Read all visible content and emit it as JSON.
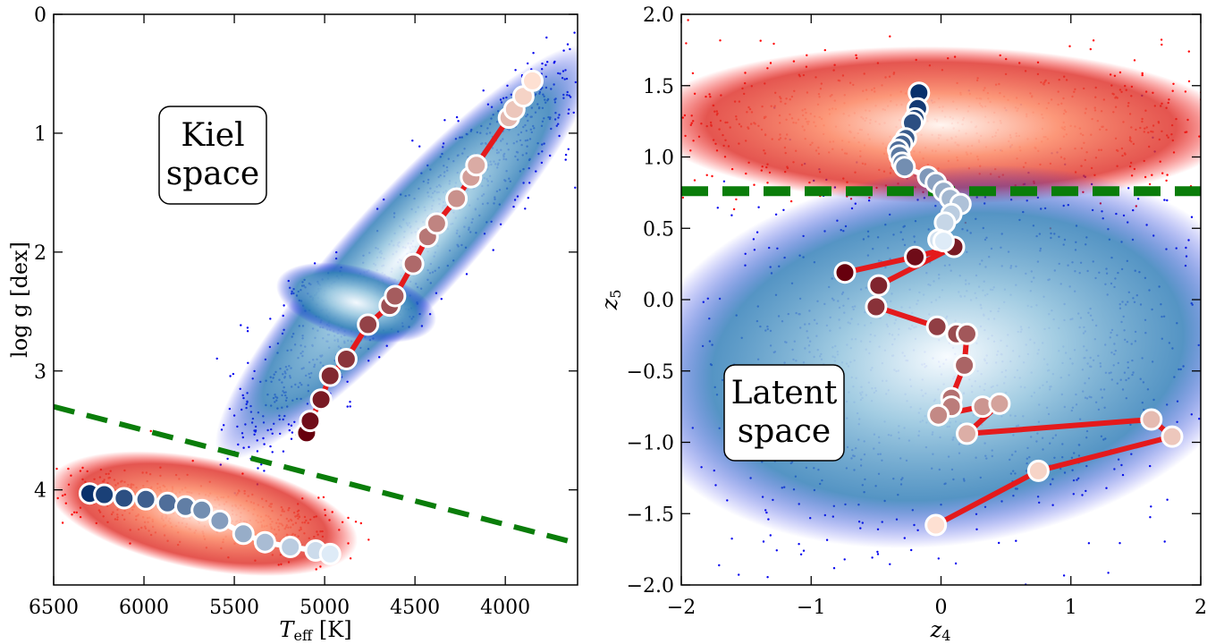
{
  "chart_data": [
    {
      "type": "scatter",
      "xlabel": "T",
      "xlabel_sub": "eff",
      "xlabel_unit": " [K]",
      "ylabel": "log g [dex]",
      "xlim": [
        6500,
        3600
      ],
      "ylim": [
        4.8,
        0
      ],
      "x_ticks": [
        6500,
        6000,
        5500,
        5000,
        4500,
        4000
      ],
      "y_ticks": [
        0,
        1,
        2,
        3,
        4
      ],
      "annotation": [
        "Kiel",
        "space"
      ],
      "divider": {
        "color": "#0a7d0a",
        "style": "dashed",
        "points": [
          [
            6500,
            3.3
          ],
          [
            3600,
            4.45
          ]
        ]
      },
      "populations": [
        {
          "color": "#0000ee",
          "density_colormap": "Blues",
          "region": "giant branch"
        },
        {
          "color": "#ff0000",
          "density_colormap": "Reds",
          "region": "dwarfs"
        }
      ],
      "sequences": [
        {
          "line_color": "#e41a1c",
          "colormap": "Reds",
          "points": [
            [
              5100,
              3.52
            ],
            [
              5080,
              3.42
            ],
            [
              5020,
              3.24
            ],
            [
              4970,
              3.04
            ],
            [
              4880,
              2.9
            ],
            [
              4760,
              2.61
            ],
            [
              4640,
              2.45
            ],
            [
              4610,
              2.37
            ],
            [
              4510,
              2.1
            ],
            [
              4430,
              1.87
            ],
            [
              4380,
              1.76
            ],
            [
              4270,
              1.55
            ],
            [
              4190,
              1.37
            ],
            [
              4160,
              1.27
            ],
            [
              3980,
              0.87
            ],
            [
              3950,
              0.8
            ],
            [
              3900,
              0.69
            ],
            [
              3850,
              0.56
            ]
          ]
        },
        {
          "line_color": "#ffffff",
          "colormap": "Blues",
          "points": [
            [
              6300,
              4.03
            ],
            [
              6220,
              4.04
            ],
            [
              6110,
              4.07
            ],
            [
              5990,
              4.08
            ],
            [
              5870,
              4.11
            ],
            [
              5770,
              4.14
            ],
            [
              5680,
              4.17
            ],
            [
              5580,
              4.26
            ],
            [
              5450,
              4.37
            ],
            [
              5330,
              4.44
            ],
            [
              5190,
              4.48
            ],
            [
              5050,
              4.51
            ],
            [
              4970,
              4.54
            ]
          ]
        }
      ]
    },
    {
      "type": "scatter",
      "xlabel": "z",
      "xlabel_sub": "4",
      "ylabel": "z",
      "ylabel_sub": "5",
      "xlim": [
        -2,
        2
      ],
      "ylim": [
        -2,
        2
      ],
      "x_ticks": [
        -2,
        -1,
        0,
        1,
        2
      ],
      "y_ticks": [
        -2.0,
        -1.5,
        -1.0,
        -0.5,
        0.0,
        0.5,
        1.0,
        1.5,
        2.0
      ],
      "annotation": [
        "Latent",
        "space"
      ],
      "divider": {
        "color": "#0a7d0a",
        "style": "dashed",
        "points": [
          [
            -2,
            0.76
          ],
          [
            2,
            0.76
          ]
        ]
      },
      "populations": [
        {
          "color": "#ff0000",
          "density_colormap": "Reds",
          "region": "upper"
        },
        {
          "color": "#0000ee",
          "density_colormap": "Blues",
          "region": "lower"
        }
      ],
      "sequences": [
        {
          "line_color": "#e41a1c",
          "colormap": "Reds",
          "points": [
            [
              -0.74,
              0.19
            ],
            [
              -0.2,
              0.3
            ],
            [
              0.1,
              0.37
            ],
            [
              -0.48,
              0.1
            ],
            [
              -0.5,
              -0.05
            ],
            [
              -0.03,
              -0.19
            ],
            [
              0.12,
              -0.24
            ],
            [
              0.2,
              -0.24
            ],
            [
              0.18,
              -0.46
            ],
            [
              0.08,
              -0.69
            ],
            [
              0.08,
              -0.75
            ],
            [
              -0.02,
              -0.81
            ],
            [
              0.32,
              -0.75
            ],
            [
              0.45,
              -0.73
            ],
            [
              0.2,
              -0.94
            ],
            [
              1.62,
              -0.84
            ],
            [
              1.78,
              -0.96
            ],
            [
              0.75,
              -1.2
            ],
            [
              -0.04,
              -1.58
            ]
          ]
        },
        {
          "line_color": "#ffffff",
          "colormap": "Blues",
          "points": [
            [
              -0.17,
              1.45
            ],
            [
              -0.18,
              1.34
            ],
            [
              -0.2,
              1.27
            ],
            [
              -0.22,
              1.24
            ],
            [
              -0.27,
              1.13
            ],
            [
              -0.3,
              1.09
            ],
            [
              -0.33,
              1.05
            ],
            [
              -0.32,
              1.01
            ],
            [
              -0.3,
              0.96
            ],
            [
              -0.28,
              0.93
            ],
            [
              -0.1,
              0.86
            ],
            [
              -0.04,
              0.82
            ],
            [
              0.02,
              0.76
            ],
            [
              0.07,
              0.71
            ],
            [
              0.15,
              0.67
            ],
            [
              0.08,
              0.6
            ],
            [
              0.03,
              0.54
            ],
            [
              -0.02,
              0.42
            ],
            [
              0.02,
              0.41
            ]
          ]
        }
      ]
    }
  ]
}
